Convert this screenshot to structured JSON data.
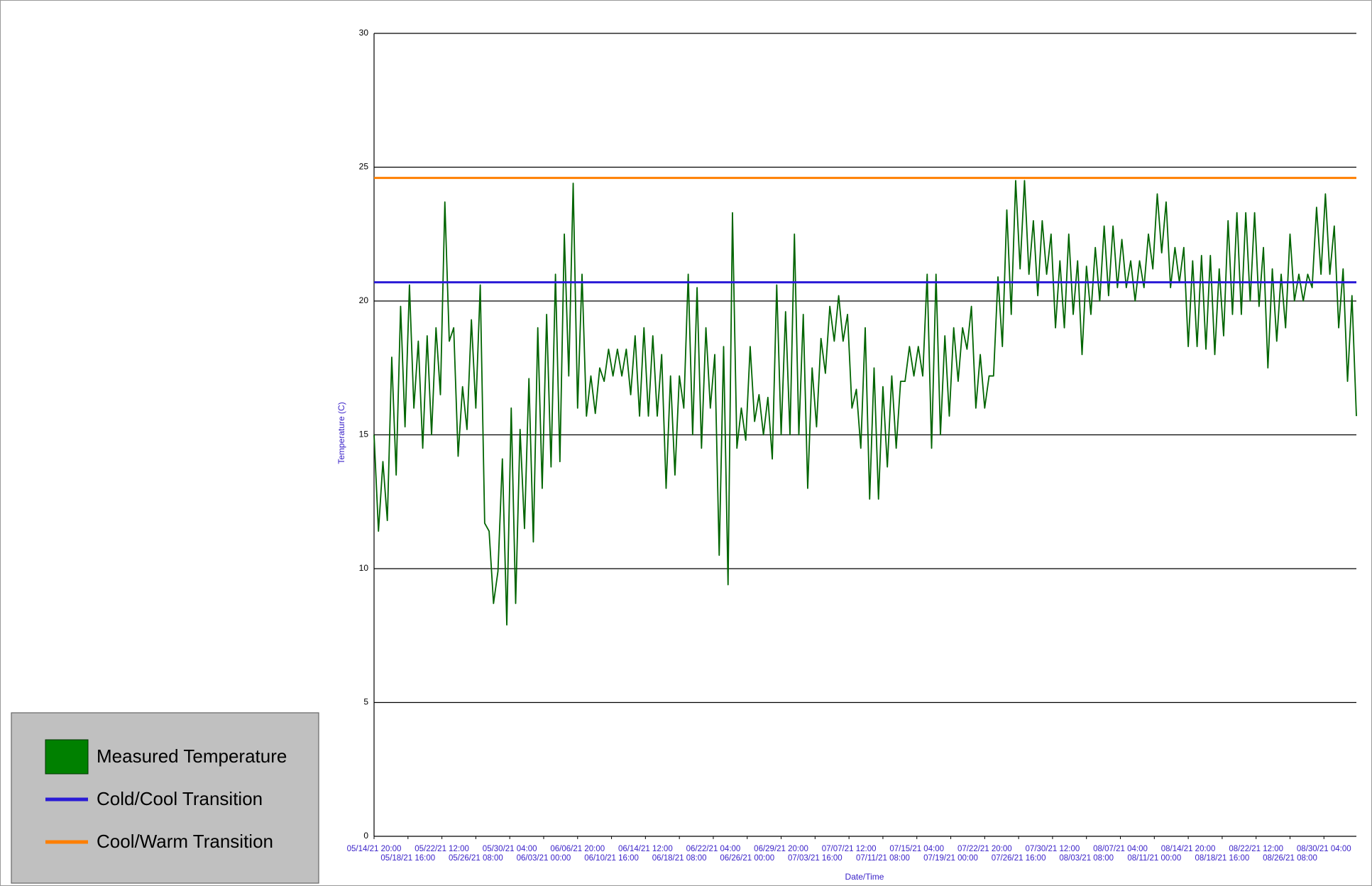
{
  "chart_data": {
    "type": "line",
    "y_label": "Temperature (C)",
    "x_label": "Date/Time",
    "ylim": [
      0,
      30
    ],
    "yticks": [
      0,
      5,
      10,
      15,
      20,
      25,
      30
    ],
    "grid": true,
    "legend": "bottom-left",
    "xlim": [
      "05/14/21 20:00",
      "09/02/21 20:00"
    ],
    "xticks": [
      "05/14/21 20:00",
      "05/18/21 16:00",
      "05/22/21 12:00",
      "05/26/21 08:00",
      "05/30/21 04:00",
      "06/03/21 00:00",
      "06/06/21 20:00",
      "06/10/21 16:00",
      "06/14/21 12:00",
      "06/18/21 08:00",
      "06/22/21 04:00",
      "06/26/21 00:00",
      "06/29/21 20:00",
      "07/03/21 16:00",
      "07/07/21 12:00",
      "07/11/21 08:00",
      "07/15/21 04:00",
      "07/19/21 00:00",
      "07/22/21 20:00",
      "07/26/21 16:00",
      "07/30/21 12:00",
      "08/03/21 08:00",
      "08/07/21 04:00",
      "08/11/21 00:00",
      "08/14/21 20:00",
      "08/18/21 16:00",
      "08/22/21 12:00",
      "08/26/21 08:00",
      "08/30/21 04:00"
    ],
    "x": [
      "05/14/21 20:00",
      "05/15/21 08:00",
      "05/15/21 20:00",
      "05/16/21 08:00",
      "05/16/21 20:00",
      "05/17/21 08:00",
      "05/17/21 20:00",
      "05/18/21 08:00",
      "05/18/21 20:00",
      "05/19/21 08:00",
      "05/19/21 20:00",
      "05/20/21 08:00",
      "05/20/21 20:00",
      "05/21/21 08:00",
      "05/21/21 20:00",
      "05/22/21 08:00",
      "05/22/21 20:00",
      "05/23/21 08:00",
      "05/23/21 20:00",
      "05/24/21 08:00",
      "05/24/21 20:00",
      "05/25/21 08:00",
      "05/25/21 20:00",
      "05/26/21 08:00",
      "05/26/21 20:00",
      "05/27/21 08:00",
      "05/27/21 20:00",
      "05/28/21 08:00",
      "05/28/21 20:00",
      "05/29/21 08:00",
      "05/29/21 20:00",
      "05/30/21 08:00",
      "05/30/21 20:00",
      "05/31/21 08:00",
      "05/31/21 20:00",
      "06/01/21 08:00",
      "06/01/21 20:00",
      "06/02/21 08:00",
      "06/02/21 20:00",
      "06/03/21 08:00",
      "06/03/21 20:00",
      "06/04/21 08:00",
      "06/04/21 20:00",
      "06/05/21 08:00",
      "06/05/21 20:00",
      "06/06/21 08:00",
      "06/06/21 20:00",
      "06/07/21 08:00",
      "06/07/21 20:00",
      "06/08/21 08:00",
      "06/08/21 20:00",
      "06/09/21 08:00",
      "06/09/21 20:00",
      "06/10/21 08:00",
      "06/10/21 20:00",
      "06/11/21 08:00",
      "06/11/21 20:00",
      "06/12/21 08:00",
      "06/12/21 20:00",
      "06/13/21 08:00",
      "06/13/21 20:00",
      "06/14/21 08:00",
      "06/14/21 20:00",
      "06/15/21 08:00",
      "06/15/21 20:00",
      "06/16/21 08:00",
      "06/16/21 20:00",
      "06/17/21 08:00",
      "06/17/21 20:00",
      "06/18/21 08:00",
      "06/18/21 20:00",
      "06/19/21 08:00",
      "06/19/21 20:00",
      "06/20/21 08:00",
      "06/20/21 20:00",
      "06/21/21 08:00",
      "06/21/21 20:00",
      "06/22/21 08:00",
      "06/22/21 20:00",
      "06/23/21 08:00",
      "06/23/21 20:00",
      "06/24/21 08:00",
      "06/24/21 20:00",
      "06/25/21 08:00",
      "06/25/21 20:00",
      "06/26/21 08:00",
      "06/26/21 20:00",
      "06/27/21 08:00",
      "06/27/21 20:00",
      "06/28/21 08:00",
      "06/28/21 20:00",
      "06/29/21 08:00",
      "06/29/21 20:00",
      "06/30/21 08:00",
      "06/30/21 20:00",
      "07/01/21 08:00",
      "07/01/21 20:00",
      "07/02/21 08:00",
      "07/02/21 20:00",
      "07/03/21 08:00",
      "07/03/21 20:00",
      "07/04/21 08:00",
      "07/04/21 20:00",
      "07/05/21 08:00",
      "07/05/21 20:00",
      "07/06/21 08:00",
      "07/06/21 20:00",
      "07/07/21 08:00",
      "07/07/21 20:00",
      "07/08/21 08:00",
      "07/08/21 20:00",
      "07/09/21 08:00",
      "07/09/21 20:00",
      "07/10/21 08:00",
      "07/10/21 20:00",
      "07/11/21 08:00",
      "07/11/21 20:00",
      "07/12/21 08:00",
      "07/12/21 20:00",
      "07/13/21 08:00",
      "07/13/21 20:00",
      "07/14/21 08:00",
      "07/14/21 20:00",
      "07/15/21 08:00",
      "07/15/21 20:00",
      "07/16/21 08:00",
      "07/16/21 20:00",
      "07/17/21 08:00",
      "07/17/21 20:00",
      "07/18/21 08:00",
      "07/18/21 20:00",
      "07/19/21 08:00",
      "07/19/21 20:00",
      "07/20/21 08:00",
      "07/20/21 20:00",
      "07/21/21 08:00",
      "07/21/21 20:00",
      "07/22/21 08:00",
      "07/22/21 20:00",
      "07/23/21 08:00",
      "07/23/21 20:00",
      "07/24/21 08:00",
      "07/24/21 20:00",
      "07/25/21 08:00",
      "07/25/21 20:00",
      "07/26/21 08:00",
      "07/26/21 20:00",
      "07/27/21 08:00",
      "07/27/21 20:00",
      "07/28/21 08:00",
      "07/28/21 20:00",
      "07/29/21 08:00",
      "07/29/21 20:00",
      "07/30/21 08:00",
      "07/30/21 20:00",
      "07/31/21 08:00",
      "07/31/21 20:00",
      "08/01/21 08:00",
      "08/01/21 20:00",
      "08/02/21 08:00",
      "08/02/21 20:00",
      "08/03/21 08:00",
      "08/03/21 20:00",
      "08/04/21 08:00",
      "08/04/21 20:00",
      "08/05/21 08:00",
      "08/05/21 20:00",
      "08/06/21 08:00",
      "08/06/21 20:00",
      "08/07/21 08:00",
      "08/07/21 20:00",
      "08/08/21 08:00",
      "08/08/21 20:00",
      "08/09/21 08:00",
      "08/09/21 20:00",
      "08/10/21 08:00",
      "08/10/21 20:00",
      "08/11/21 08:00",
      "08/11/21 20:00",
      "08/12/21 08:00",
      "08/12/21 20:00",
      "08/13/21 08:00",
      "08/13/21 20:00",
      "08/14/21 08:00",
      "08/14/21 20:00",
      "08/15/21 08:00",
      "08/15/21 20:00",
      "08/16/21 08:00",
      "08/16/21 20:00",
      "08/17/21 08:00",
      "08/17/21 20:00",
      "08/18/21 08:00",
      "08/18/21 20:00",
      "08/19/21 08:00",
      "08/19/21 20:00",
      "08/20/21 08:00",
      "08/20/21 20:00",
      "08/21/21 08:00",
      "08/21/21 20:00",
      "08/22/21 08:00",
      "08/22/21 20:00",
      "08/23/21 08:00",
      "08/23/21 20:00",
      "08/24/21 08:00",
      "08/24/21 20:00",
      "08/25/21 08:00",
      "08/25/21 20:00",
      "08/26/21 08:00",
      "08/26/21 20:00",
      "08/27/21 08:00",
      "08/27/21 20:00",
      "08/28/21 08:00",
      "08/28/21 20:00",
      "08/29/21 08:00",
      "08/29/21 20:00",
      "08/30/21 08:00",
      "08/30/21 20:00",
      "08/31/21 08:00",
      "08/31/21 20:00",
      "09/01/21 08:00",
      "09/01/21 20:00",
      "09/02/21 08:00",
      "09/02/21 20:00"
    ],
    "series": [
      {
        "name": "Measured Temperature",
        "color": "#006400",
        "values": [
          15,
          11.4,
          14,
          11.8,
          17.9,
          13.5,
          19.8,
          15.3,
          20.6,
          16,
          18.5,
          14.5,
          18.7,
          15,
          19,
          16.5,
          23.7,
          18.5,
          19,
          14.2,
          16.8,
          15.2,
          19.3,
          16,
          20.6,
          11.7,
          11.4,
          8.7,
          9.9,
          14.1,
          7.9,
          16,
          8.7,
          15.2,
          11.5,
          17.1,
          11,
          19,
          13,
          19.5,
          13.8,
          21,
          14,
          22.5,
          17.2,
          24.4,
          16,
          21,
          15.7,
          17.2,
          15.8,
          17.5,
          17,
          18.2,
          17.2,
          18.2,
          17.2,
          18.2,
          16.5,
          18.7,
          15.7,
          19,
          15.7,
          18.7,
          15.7,
          18,
          13,
          17.2,
          13.5,
          17.2,
          16,
          21,
          15,
          20.5,
          14.5,
          19,
          16,
          18,
          10.5,
          18.3,
          9.4,
          23.3,
          14.5,
          16,
          14.8,
          18.3,
          15.5,
          16.5,
          15,
          16.4,
          14.1,
          20.6,
          15,
          19.6,
          15,
          22.5,
          15,
          19.5,
          13,
          17.5,
          15.3,
          18.6,
          17.3,
          19.8,
          18.5,
          20.2,
          18.5,
          19.5,
          16,
          16.7,
          14.5,
          19,
          12.6,
          17.5,
          12.6,
          16.8,
          13.8,
          17.2,
          14.5,
          17,
          17,
          18.3,
          17.2,
          18.3,
          17.2,
          21,
          14.5,
          21,
          15,
          18.7,
          15.7,
          19,
          17,
          19,
          18.2,
          19.8,
          16,
          18,
          16,
          17.2,
          17.2,
          20.9,
          18.3,
          23.4,
          19.5,
          24.5,
          21.2,
          24.5,
          21,
          23,
          20.2,
          23,
          21,
          22.5,
          19,
          21.5,
          19,
          22.5,
          19.5,
          21.5,
          18,
          21.3,
          19.5,
          22,
          20,
          22.8,
          20.2,
          22.8,
          20.5,
          22.3,
          20.5,
          21.5,
          20,
          21.5,
          20.5,
          22.5,
          21.2,
          24,
          21.8,
          23.7,
          20.5,
          22,
          20.7,
          22,
          18.3,
          21.5,
          18.3,
          21.7,
          18.2,
          21.7,
          18,
          21.2,
          18.7,
          23,
          19.5,
          23.3,
          19.5,
          23.3,
          20,
          23.3,
          19.8,
          22,
          17.5,
          21.2,
          18.5,
          21,
          19,
          22.5,
          20,
          21,
          20,
          21,
          20.5,
          23.5,
          21,
          24,
          21,
          22.8,
          19,
          21.2,
          17,
          20.2,
          15.7
        ]
      }
    ],
    "hlines": [
      {
        "name": "Cold/Cool Transition",
        "color": "#2a1bd6",
        "value": 20.7
      },
      {
        "name": "Cool/Warm Transition",
        "color": "#ff7f00",
        "value": 24.6
      }
    ]
  }
}
